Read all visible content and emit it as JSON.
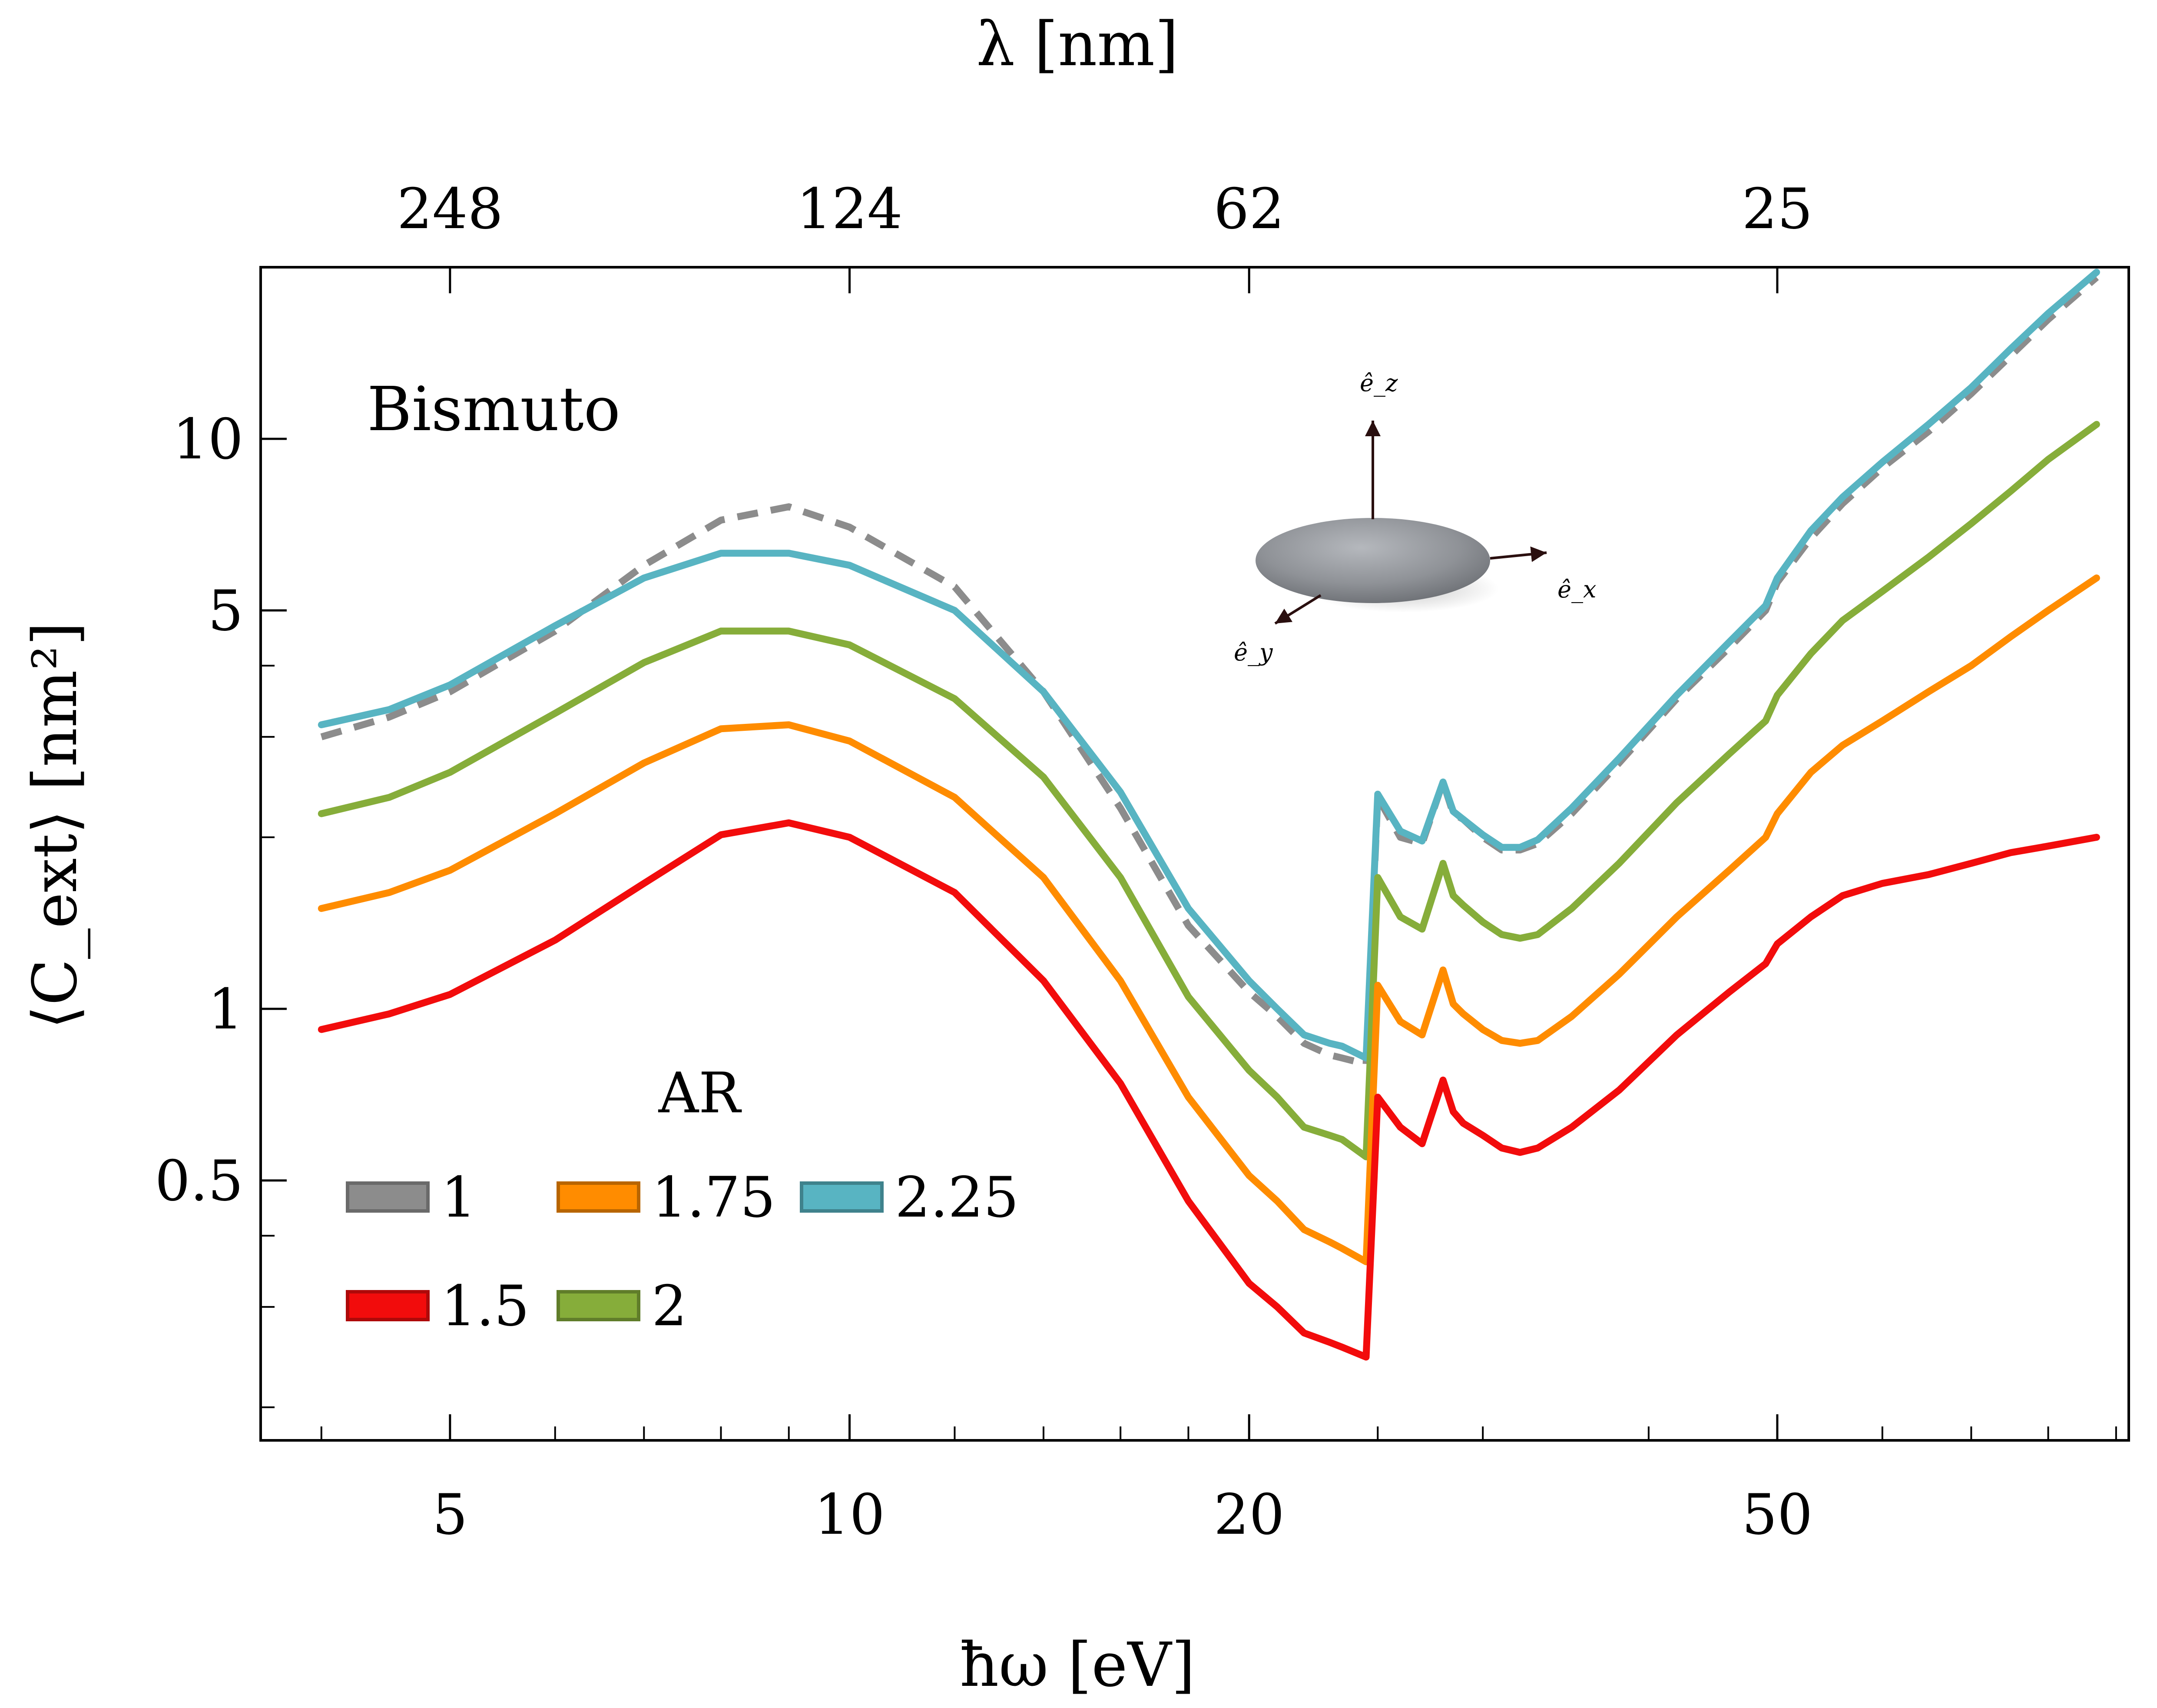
{
  "chart_data": {
    "type": "line",
    "x_scale": "log",
    "y_scale": "log",
    "xlim": [
      3.6,
      92
    ],
    "ylim": [
      0.175,
      20
    ],
    "grid": false,
    "xlabel": "ħω [eV]",
    "ylabel": "⟨C_ext⟩ [nm²]",
    "top_xlabel": "λ [nm]",
    "x_ticks": [
      5,
      10,
      20,
      50
    ],
    "x_tick_labels": [
      "5",
      "10",
      "20",
      "50"
    ],
    "y_ticks": [
      0.5,
      1,
      5,
      10
    ],
    "y_tick_labels": [
      "0.5",
      "1",
      "5",
      "10"
    ],
    "top_ticks_ev": [
      5,
      10,
      20,
      50
    ],
    "top_tick_labels": [
      "248",
      "124",
      "62",
      "25"
    ],
    "annotation": "Bismuto",
    "legend_title": "AR",
    "legend_placement": "bottom-left",
    "inset": {
      "description": "ellipsoid particle with unit vectors",
      "labels": [
        "ê_z",
        "ê_x",
        "ê_y"
      ]
    },
    "x": [
      4.0,
      4.5,
      5.0,
      6.0,
      7.0,
      8.0,
      9.0,
      10.0,
      12.0,
      14.0,
      16.0,
      18.0,
      20.0,
      21.0,
      22.0,
      23.0,
      23.5,
      24.5,
      25.0,
      26.0,
      27.0,
      28.0,
      28.5,
      29.0,
      30.0,
      31.0,
      32.0,
      33.0,
      35.0,
      38.0,
      42.0,
      46.0,
      49.0,
      50.0,
      53.0,
      56.0,
      60.0,
      65.0,
      70.0,
      75.0,
      80.0,
      87.0
    ],
    "series": [
      {
        "name": "1",
        "color": "#8c8c8c",
        "style": "dashed",
        "values": [
          3.0,
          3.25,
          3.6,
          4.6,
          6.0,
          7.2,
          7.6,
          7.0,
          5.5,
          3.6,
          2.25,
          1.4,
          1.07,
          0.97,
          0.87,
          0.83,
          0.82,
          0.8,
          2.35,
          2.0,
          1.95,
          2.5,
          2.2,
          2.15,
          2.0,
          1.9,
          1.9,
          1.95,
          2.2,
          2.7,
          3.5,
          4.3,
          5.0,
          5.6,
          6.7,
          7.7,
          8.9,
          10.3,
          12.0,
          14.0,
          16.2,
          19.2
        ]
      },
      {
        "name": "2.25",
        "color": "#58b4c2",
        "style": "solid",
        "values": [
          3.15,
          3.35,
          3.7,
          4.7,
          5.7,
          6.3,
          6.3,
          6.0,
          5.0,
          3.6,
          2.4,
          1.5,
          1.12,
          1.0,
          0.9,
          0.87,
          0.86,
          0.82,
          2.38,
          2.05,
          1.97,
          2.5,
          2.22,
          2.15,
          2.02,
          1.92,
          1.92,
          1.98,
          2.25,
          2.75,
          3.55,
          4.4,
          5.1,
          5.7,
          6.9,
          7.9,
          9.1,
          10.6,
          12.3,
          14.4,
          16.6,
          19.6
        ]
      },
      {
        "name": "2",
        "color": "#86ad3a",
        "style": "solid",
        "values": [
          2.2,
          2.35,
          2.6,
          3.3,
          4.05,
          4.6,
          4.6,
          4.35,
          3.5,
          2.55,
          1.7,
          1.05,
          0.78,
          0.7,
          0.62,
          0.6,
          0.59,
          0.55,
          1.7,
          1.45,
          1.38,
          1.8,
          1.58,
          1.52,
          1.42,
          1.35,
          1.33,
          1.35,
          1.5,
          1.8,
          2.3,
          2.8,
          3.2,
          3.55,
          4.2,
          4.8,
          5.4,
          6.2,
          7.1,
          8.1,
          9.2,
          10.6
        ]
      },
      {
        "name": "1.75",
        "color": "#ff8c00",
        "style": "solid",
        "values": [
          1.5,
          1.6,
          1.75,
          2.2,
          2.7,
          3.1,
          3.15,
          2.95,
          2.35,
          1.7,
          1.12,
          0.7,
          0.51,
          0.46,
          0.41,
          0.39,
          0.38,
          0.36,
          1.1,
          0.95,
          0.9,
          1.17,
          1.02,
          0.98,
          0.92,
          0.88,
          0.87,
          0.88,
          0.97,
          1.15,
          1.45,
          1.75,
          2.0,
          2.2,
          2.6,
          2.9,
          3.2,
          3.6,
          4.0,
          4.5,
          5.0,
          5.7
        ]
      },
      {
        "name": "1.5",
        "color": "#f20c0c",
        "style": "solid",
        "values": [
          0.92,
          0.98,
          1.06,
          1.32,
          1.66,
          2.02,
          2.12,
          2.0,
          1.6,
          1.12,
          0.74,
          0.46,
          0.33,
          0.3,
          0.27,
          0.26,
          0.255,
          0.245,
          0.7,
          0.62,
          0.58,
          0.75,
          0.66,
          0.63,
          0.6,
          0.57,
          0.56,
          0.57,
          0.62,
          0.72,
          0.9,
          1.07,
          1.2,
          1.3,
          1.45,
          1.58,
          1.66,
          1.72,
          1.8,
          1.88,
          1.93,
          2.0
        ]
      }
    ],
    "legend_order": [
      "1",
      "1.75",
      "2.25",
      "1.5",
      "2"
    ]
  }
}
